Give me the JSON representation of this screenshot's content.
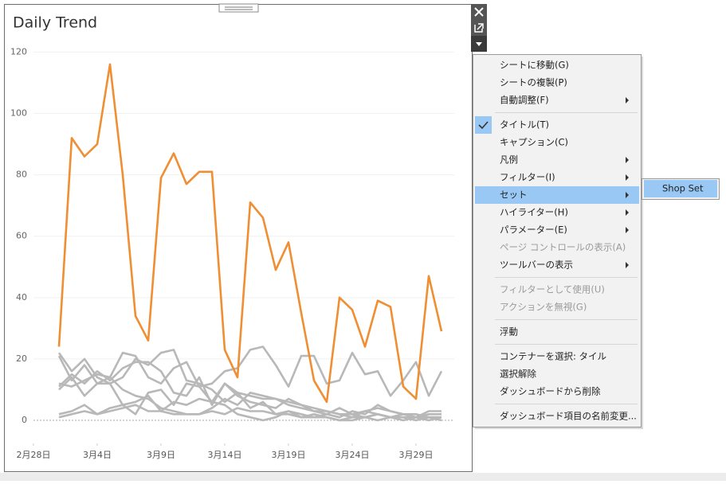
{
  "chart_data": {
    "type": "line",
    "title": "Daily Trend",
    "x": [
      "03-01",
      "03-02",
      "03-03",
      "03-04",
      "03-05",
      "03-06",
      "03-07",
      "03-08",
      "03-09",
      "03-10",
      "03-11",
      "03-12",
      "03-13",
      "03-14",
      "03-15",
      "03-16",
      "03-17",
      "03-18",
      "03-19",
      "03-20",
      "03-21",
      "03-22",
      "03-23",
      "03-24",
      "03-25",
      "03-26",
      "03-27",
      "03-28",
      "03-29",
      "03-30",
      "03-31"
    ],
    "xlim": [
      "02-28",
      "04-01"
    ],
    "xticks": [
      {
        "value": "02-28",
        "label": "2月28日"
      },
      {
        "value": "03-04",
        "label": "3月4日"
      },
      {
        "value": "03-09",
        "label": "3月9日"
      },
      {
        "value": "03-14",
        "label": "3月14日"
      },
      {
        "value": "03-19",
        "label": "3月19日"
      },
      {
        "value": "03-24",
        "label": "3月24日"
      },
      {
        "value": "03-29",
        "label": "3月29日"
      }
    ],
    "ylim": [
      -7,
      124
    ],
    "yticks": [
      0,
      20,
      40,
      60,
      80,
      100,
      120
    ],
    "grid": true,
    "series": [
      {
        "color": "#b8b8b8",
        "values": [
          22,
          16,
          20,
          14,
          12,
          14,
          20,
          18,
          22,
          23,
          13,
          12,
          10,
          6,
          9,
          8,
          7,
          7,
          5,
          4,
          3,
          3,
          2,
          2,
          1,
          2,
          1,
          1,
          1,
          1,
          1
        ]
      },
      {
        "color": "#b8b8b8",
        "values": [
          12,
          11,
          13,
          15,
          14,
          22,
          21,
          14,
          12,
          17,
          19,
          11,
          12,
          16,
          17,
          23,
          24,
          18,
          11,
          21,
          21,
          12,
          13,
          22,
          15,
          16,
          8,
          13,
          19,
          8,
          16
        ]
      },
      {
        "color": "#b8b8b8",
        "values": [
          11,
          15,
          12,
          16,
          13,
          17,
          19,
          19,
          16,
          9,
          8,
          14,
          5,
          12,
          8,
          6,
          5,
          4,
          7,
          5,
          3,
          2,
          4,
          2,
          3,
          2,
          1,
          2,
          1,
          2,
          2
        ]
      },
      {
        "color": "#b8b8b8",
        "values": [
          1,
          2,
          3,
          2,
          4,
          5,
          6,
          8,
          3,
          2,
          2,
          2,
          4,
          7,
          5,
          9,
          8,
          7,
          6,
          5,
          4,
          3,
          2,
          1,
          3,
          4,
          3,
          2,
          2,
          1,
          1
        ]
      },
      {
        "color": "#b8b8b8",
        "values": [
          10,
          14,
          8,
          12,
          12,
          5,
          2,
          9,
          10,
          5,
          12,
          11,
          6,
          12,
          9,
          4,
          6,
          2,
          3,
          1,
          1,
          2,
          1,
          3,
          2,
          5,
          3,
          2,
          1,
          3,
          3
        ]
      },
      {
        "color": "#b8b8b8",
        "values": [
          2,
          3,
          5,
          2,
          3,
          4,
          5,
          3,
          3,
          6,
          5,
          7,
          6,
          5,
          2,
          1,
          0,
          1,
          3,
          2,
          1,
          1,
          0,
          0,
          1,
          2,
          1,
          1,
          0,
          1,
          0
        ]
      },
      {
        "color": "#b8b8b8",
        "values": [
          21,
          13,
          18,
          12,
          14,
          10,
          8,
          7,
          4,
          3,
          2,
          2,
          3,
          2,
          4,
          3,
          3,
          2,
          2,
          1,
          2,
          1,
          0,
          1,
          1,
          0,
          1,
          0,
          1,
          0,
          1
        ]
      },
      {
        "color": "#ef8e32",
        "values": [
          24,
          92,
          86,
          90,
          116,
          80,
          34,
          26,
          79,
          87,
          77,
          81,
          81,
          23,
          14,
          71,
          66,
          49,
          58,
          35,
          13,
          6,
          40,
          36,
          24,
          39,
          37,
          11,
          7,
          47,
          29
        ]
      }
    ]
  },
  "menu": {
    "groups": [
      [
        {
          "text": "シートに移動(G)"
        },
        {
          "text": "シートの複製(P)"
        },
        {
          "text": "自動調整(F)",
          "submenu": true
        }
      ],
      [
        {
          "text": "タイトル(T)",
          "checked": true
        },
        {
          "text": "キャプション(C)"
        },
        {
          "text": "凡例",
          "submenu": true
        },
        {
          "text": "フィルター(I)",
          "submenu": true
        },
        {
          "text": "セット",
          "submenu": true,
          "selected": true
        },
        {
          "text": "ハイライター(H)",
          "submenu": true
        },
        {
          "text": "パラメーター(E)",
          "submenu": true
        },
        {
          "text": "ページ コントロールの表示(A)",
          "disabled": true
        },
        {
          "text": "ツールバーの表示",
          "submenu": true
        }
      ],
      [
        {
          "text": "フィルターとして使用(U)",
          "disabled": true
        },
        {
          "text": "アクションを無視(G)",
          "disabled": true
        }
      ],
      [
        {
          "text": "浮動"
        }
      ],
      [
        {
          "text": "コンテナーを選択: タイル"
        },
        {
          "text": "選択解除"
        },
        {
          "text": "ダッシュボードから削除"
        }
      ],
      [
        {
          "text": "ダッシュボード項目の名前変更..."
        }
      ]
    ],
    "submenu": {
      "items": [
        {
          "text": "Shop Set",
          "selected": true
        }
      ]
    }
  }
}
